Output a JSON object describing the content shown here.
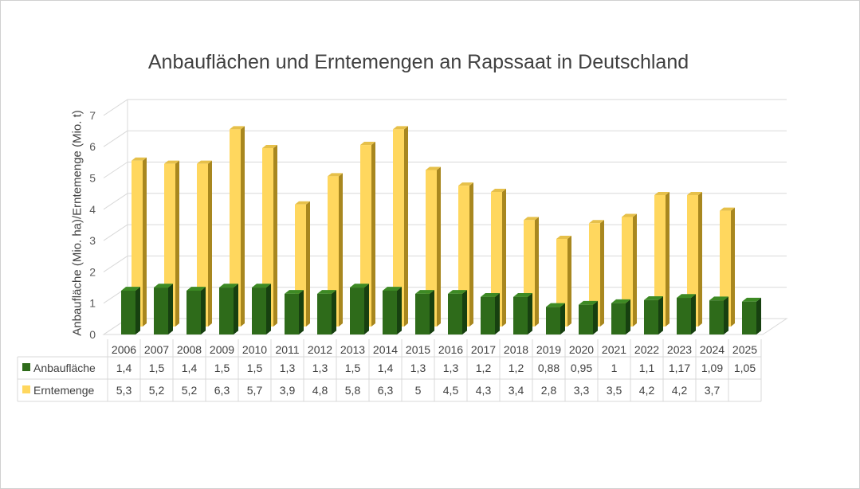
{
  "chart_data": {
    "type": "bar",
    "title": "Anbauflächen und Erntemengen an Rapssaat in Deutschland",
    "xlabel": "",
    "ylabel": "Anbaufläche (Mio. ha)/Erntemenge (Mio. t)",
    "ylim": [
      0,
      7
    ],
    "yticks": [
      0,
      1,
      2,
      3,
      4,
      5,
      6,
      7
    ],
    "grid": true,
    "legend": "data-table",
    "categories": [
      "2006",
      "2007",
      "2008",
      "2009",
      "2010",
      "2011",
      "2012",
      "2013",
      "2014",
      "2015",
      "2016",
      "2017",
      "2018",
      "2019",
      "2020",
      "2021",
      "2022",
      "2023",
      "2024",
      "2025"
    ],
    "series": [
      {
        "name": "Anbaufläche",
        "color": "#2e6b1a",
        "values": [
          1.4,
          1.5,
          1.4,
          1.5,
          1.5,
          1.3,
          1.3,
          1.5,
          1.4,
          1.3,
          1.3,
          1.2,
          1.2,
          0.88,
          0.95,
          1,
          1.1,
          1.17,
          1.09,
          1.05
        ],
        "labels": [
          "1,4",
          "1,5",
          "1,4",
          "1,5",
          "1,5",
          "1,3",
          "1,3",
          "1,5",
          "1,4",
          "1,3",
          "1,3",
          "1,2",
          "1,2",
          "0,88",
          "0,95",
          "1",
          "1,1",
          "1,17",
          "1,09",
          "1,05"
        ]
      },
      {
        "name": "Erntemenge",
        "color": "#ffd75e",
        "values": [
          5.3,
          5.2,
          5.2,
          6.3,
          5.7,
          3.9,
          4.8,
          5.8,
          6.3,
          5,
          4.5,
          4.3,
          3.4,
          2.8,
          3.3,
          3.5,
          4.2,
          4.2,
          3.7,
          null
        ],
        "labels": [
          "5,3",
          "5,2",
          "5,2",
          "6,3",
          "5,7",
          "3,9",
          "4,8",
          "5,8",
          "6,3",
          "5",
          "4,5",
          "4,3",
          "3,4",
          "2,8",
          "3,3",
          "3,5",
          "4,2",
          "4,2",
          "3,7",
          ""
        ]
      }
    ]
  }
}
